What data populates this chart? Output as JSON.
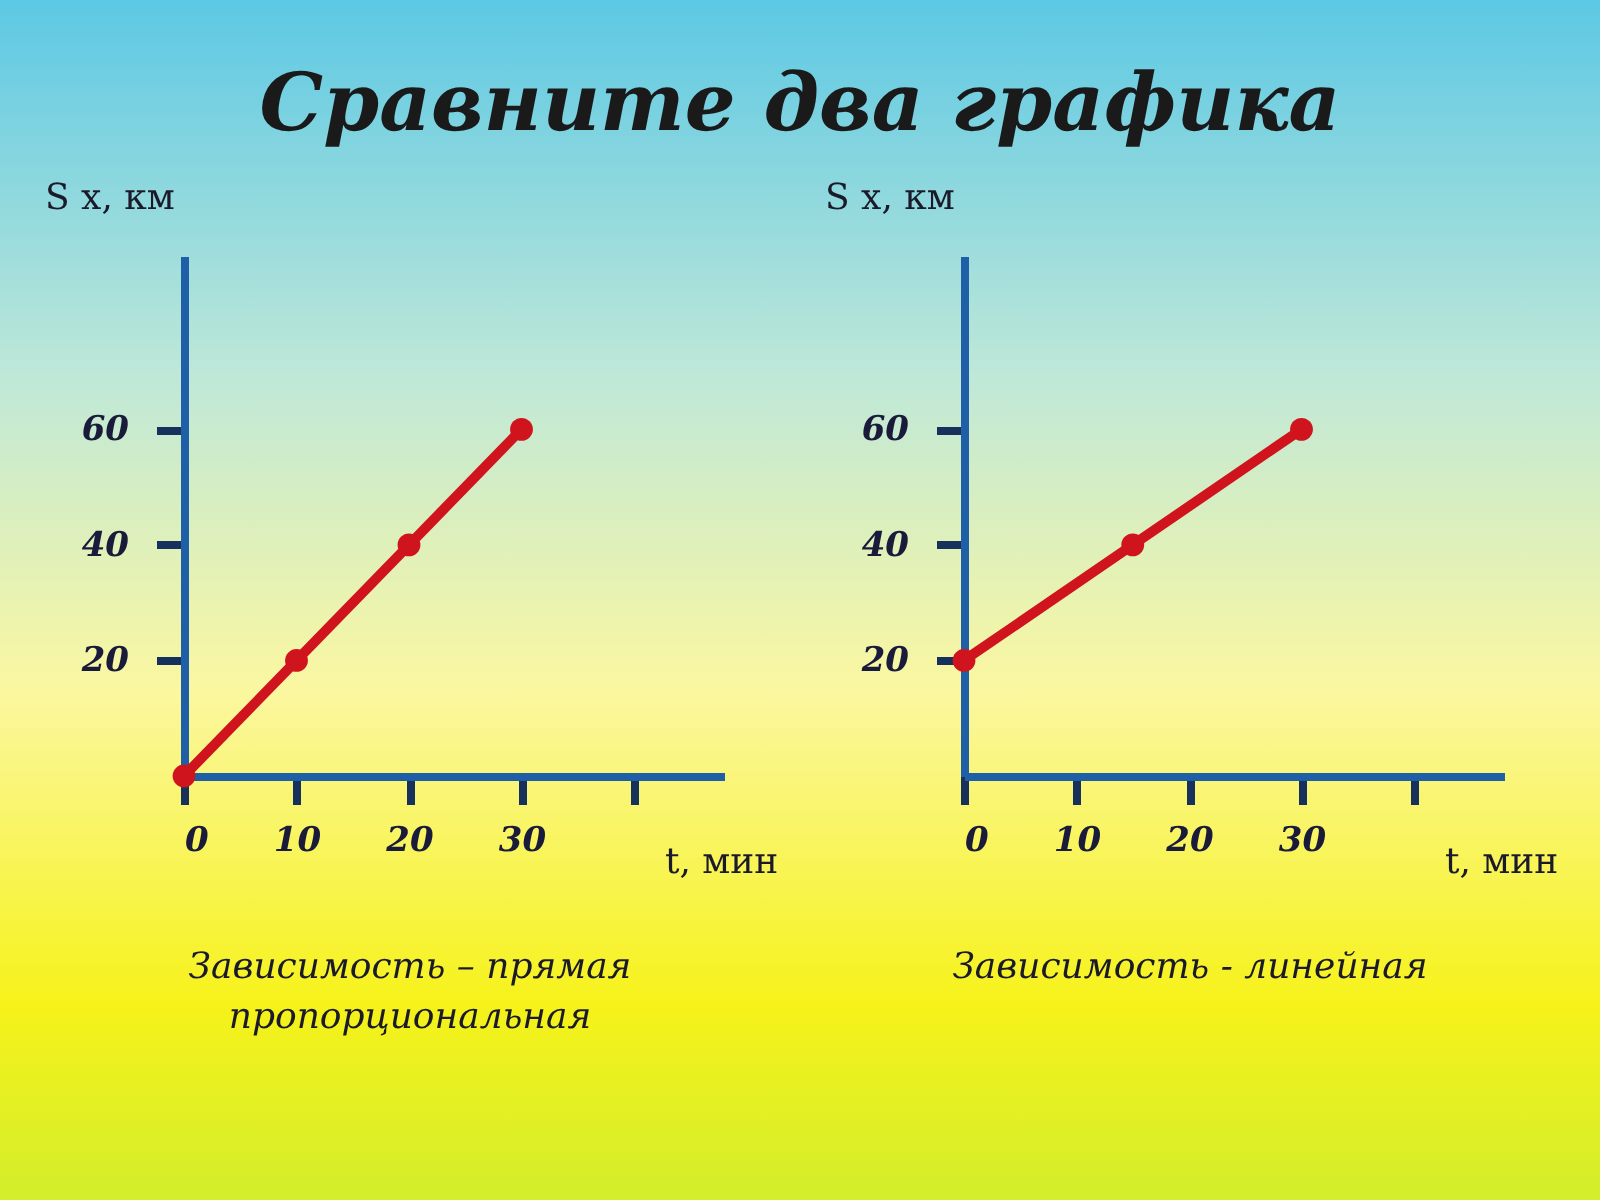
{
  "chart_data": [
    {
      "type": "line",
      "title": "Сравните два графика",
      "xlabel": "t, мин",
      "ylabel": "S x, км",
      "x": [
        0,
        10,
        20,
        30
      ],
      "series": [
        {
          "color": "#d0141e",
          "values": [
            0,
            20,
            40,
            60
          ]
        }
      ],
      "xlim": [
        0,
        48
      ],
      "ylim": [
        0,
        90
      ],
      "xticks": [
        0,
        10,
        20,
        30,
        {
          "value": 40,
          "label": null
        }
      ],
      "yticks": [
        20,
        40,
        60
      ],
      "marker": "circle",
      "grid": false,
      "annotations": [
        "Зависимость – прямая пропорциональная"
      ]
    },
    {
      "type": "line",
      "xlabel": "t, мин",
      "ylabel": "S x, км",
      "x": [
        0,
        15,
        30
      ],
      "series": [
        {
          "color": "#d0141e",
          "values": [
            20,
            40,
            60
          ]
        }
      ],
      "xlim": [
        0,
        48
      ],
      "ylim": [
        0,
        90
      ],
      "xticks": [
        0,
        10,
        20,
        30,
        {
          "value": 40,
          "label": null
        }
      ],
      "yticks": [
        20,
        40,
        60
      ],
      "marker": "circle",
      "grid": false,
      "annotations": [
        "Зависимость - линейная"
      ]
    }
  ]
}
